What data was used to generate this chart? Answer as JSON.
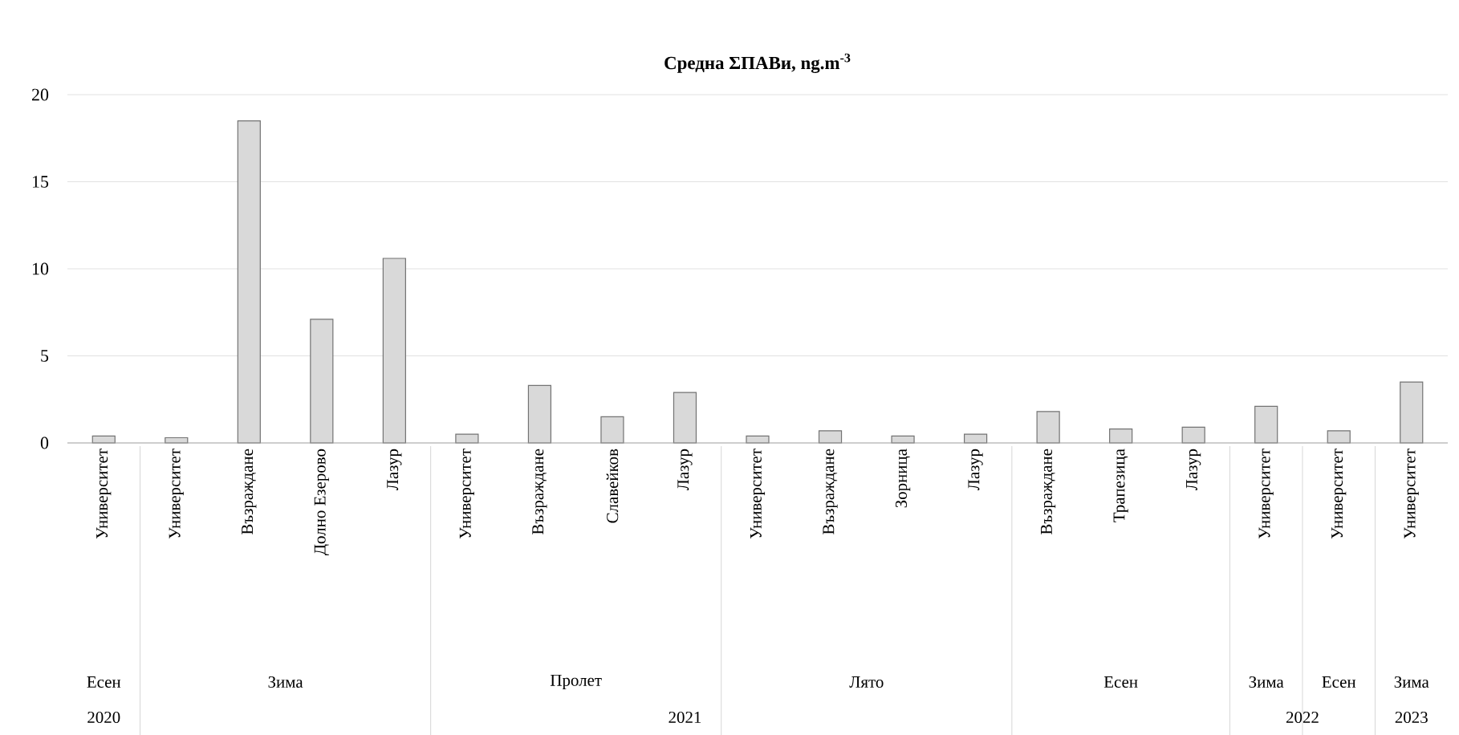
{
  "chart_data": {
    "type": "bar",
    "title": "Средна ΣПАВи, ng.m$^{-3}$",
    "categories": [
      "Университет",
      "Университет",
      "Възраждане",
      "Долно Езерово",
      "Лазур",
      "Университет",
      "Възраждане",
      "Славейков",
      "Лазур",
      "Университет",
      "Възраждане",
      "Зорница",
      "Лазур",
      "Възраждане",
      "Трапезица",
      "Лазур",
      "Университет",
      "Университет",
      "Университет"
    ],
    "values": [
      0.4,
      0.3,
      18.5,
      7.1,
      10.6,
      0.5,
      3.3,
      1.5,
      2.9,
      0.4,
      0.7,
      0.4,
      0.5,
      1.8,
      0.8,
      0.9,
      2.1,
      0.7,
      3.5
    ],
    "color": "#d9d9d9",
    "ylim": [
      0,
      20
    ],
    "yticks": [
      0,
      5,
      10,
      15,
      20
    ],
    "grid": "y",
    "annotations": [
      "Есен",
      "Зима",
      "Пролет",
      "Лято",
      "Есен",
      "Зима",
      "Есен",
      "Зима",
      "2020",
      "2021",
      "2022",
      "2023"
    ]
  }
}
